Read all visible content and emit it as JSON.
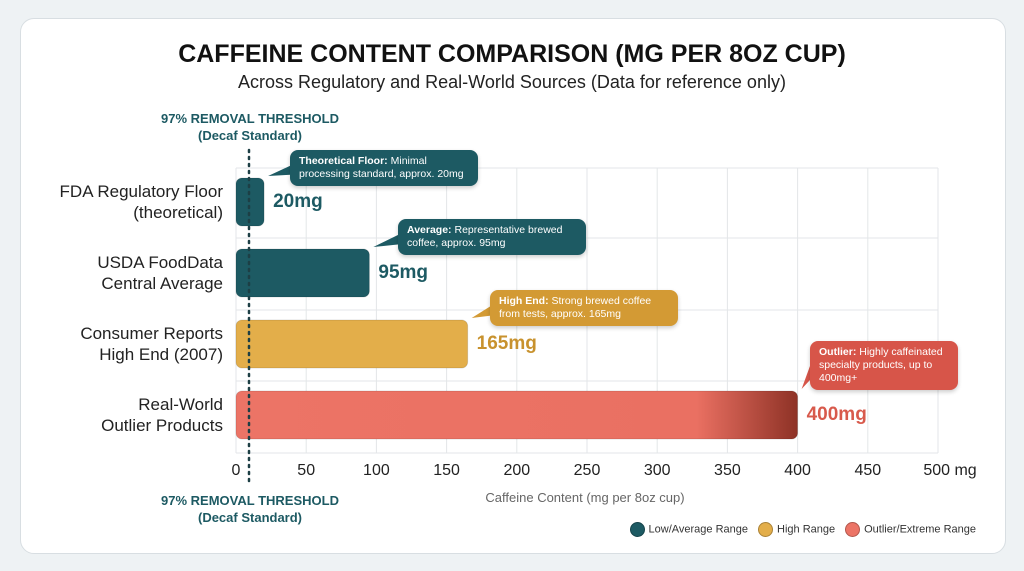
{
  "chart_data": {
    "type": "bar",
    "orientation": "horizontal",
    "title": "CAFFEINE CONTENT COMPARISON (MG PER 8OZ CUP)",
    "subtitle": "Across Regulatory and Real-World Sources (Data for reference only)",
    "xlabel": "Caffeine Content (mg per 8oz cup)",
    "xlim": [
      0,
      500
    ],
    "xticks": [
      "0",
      "50",
      "100",
      "150",
      "200",
      "250",
      "300",
      "350",
      "400",
      "450",
      "500 mg"
    ],
    "grid": true,
    "legend_position": "bottom-right",
    "threshold_label": "97% REMOVAL THRESHOLD",
    "threshold_sublabel": "(Decaf Standard)",
    "categories": [
      {
        "line1": "FDA Regulatory Floor",
        "line2": "(theoretical)",
        "value": 20,
        "label": "20mg",
        "range": "low",
        "callout_title": "Theoretical Floor:",
        "callout_text": "Minimal processing standard, approx. 20mg"
      },
      {
        "line1": "USDA FoodData",
        "line2": "Central Average",
        "value": 95,
        "label": "95mg",
        "range": "low",
        "callout_title": "Average:",
        "callout_text": "Representative brewed coffee, approx. 95mg"
      },
      {
        "line1": "Consumer Reports",
        "line2": "High End (2007)",
        "value": 165,
        "label": "165mg",
        "range": "high",
        "callout_title": "High End:",
        "callout_text": "Strong brewed coffee from tests, approx. 165mg"
      },
      {
        "line1": "Real-World",
        "line2": "Outlier Products",
        "value": 400,
        "label": "400mg",
        "range": "outlier",
        "callout_title": "Outlier:",
        "callout_text": "Highly caffeinated specialty products, up to 400mg+"
      }
    ],
    "legend": [
      {
        "key": "low",
        "label": "Low/Average Range",
        "color": "#1d5a63"
      },
      {
        "key": "high",
        "label": "High Range",
        "color": "#e3ae4a"
      },
      {
        "key": "outlier",
        "label": "Outlier/Extreme Range",
        "color": "#ec7466"
      }
    ]
  }
}
